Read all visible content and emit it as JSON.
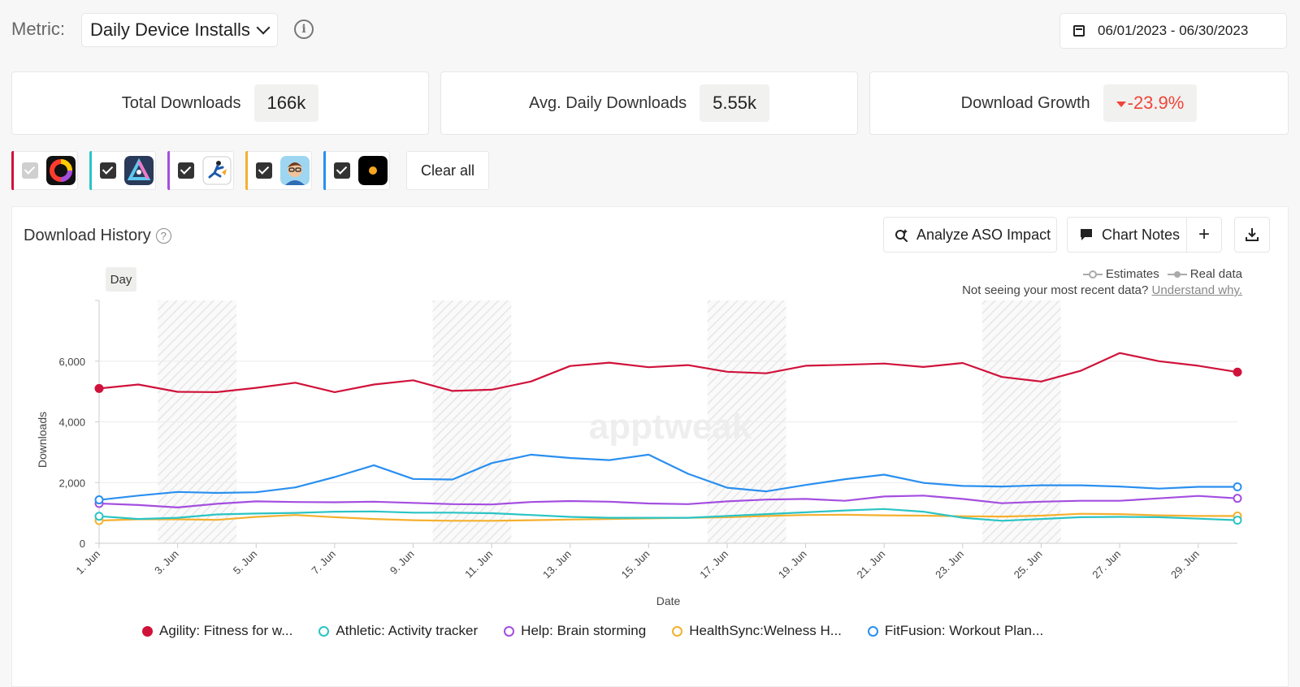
{
  "header": {
    "metric_label": "Metric:",
    "metric_value": "Daily Device Installs",
    "date_range": "06/01/2023 - 06/30/2023"
  },
  "kpis": [
    {
      "label": "Total Downloads",
      "value": "166k"
    },
    {
      "label": "Avg. Daily Downloads",
      "value": "5.55k"
    },
    {
      "label": "Download Growth",
      "value": "-23.9%"
    }
  ],
  "apps": [
    {
      "color": "#d0123a",
      "checked": false
    },
    {
      "color": "#2bc4c4",
      "checked": true
    },
    {
      "color": "#a44ee0",
      "checked": true
    },
    {
      "color": "#f5b02e",
      "checked": true
    },
    {
      "color": "#2a8ff0",
      "checked": true
    }
  ],
  "clear_all": "Clear all",
  "panel": {
    "title": "Download History",
    "analyze_btn": "Analyze ASO Impact",
    "notes_btn": "Chart Notes",
    "day_tab": "Day",
    "legend_estimates": "Estimates",
    "legend_real": "Real data",
    "note_text": "Not seeing your most recent data?",
    "note_link": "Understand why.",
    "watermark": "apptweak"
  },
  "chart_data": {
    "type": "line",
    "xlabel": "Date",
    "ylabel": "Downloads",
    "ylim": [
      0,
      8000
    ],
    "yticks": [
      0,
      2000,
      4000,
      6000
    ],
    "ytick_labels": [
      "0",
      "2,000",
      "4,000",
      "6,000"
    ],
    "x": [
      "1. Jun",
      "2. Jun",
      "3. Jun",
      "4. Jun",
      "5. Jun",
      "6. Jun",
      "7. Jun",
      "8. Jun",
      "9. Jun",
      "10. Jun",
      "11. Jun",
      "12. Jun",
      "13. Jun",
      "14. Jun",
      "15. Jun",
      "16. Jun",
      "17. Jun",
      "18. Jun",
      "19. Jun",
      "20. Jun",
      "21. Jun",
      "22. Jun",
      "23. Jun",
      "24. Jun",
      "25. Jun",
      "26. Jun",
      "27. Jun",
      "28. Jun",
      "29. Jun",
      "30. Jun"
    ],
    "xtick_labels": [
      "1. Jun",
      "3. Jun",
      "5. Jun",
      "7. Jun",
      "9. Jun",
      "11. Jun",
      "13. Jun",
      "15. Jun",
      "17. Jun",
      "19. Jun",
      "21. Jun",
      "23. Jun",
      "25. Jun",
      "27. Jun",
      "29. Jun"
    ],
    "weekend_bands": [
      [
        "3. Jun",
        "4. Jun"
      ],
      [
        "10. Jun",
        "11. Jun"
      ],
      [
        "17. Jun",
        "18. Jun"
      ],
      [
        "24. Jun",
        "25. Jun"
      ]
    ],
    "grid": true,
    "series": [
      {
        "name": "Agility: Fitness for w...",
        "color": "#d0123a",
        "filled_dot": true,
        "values": [
          5100,
          5230,
          4990,
          4980,
          5120,
          5290,
          4980,
          5230,
          5370,
          5020,
          5060,
          5330,
          5840,
          5950,
          5800,
          5870,
          5650,
          5600,
          5850,
          5880,
          5920,
          5810,
          5940,
          5480,
          5330,
          5680,
          6270,
          6000,
          5850,
          5640
        ]
      },
      {
        "name": "Athletic: Activity tracker",
        "color": "#2bc4c4",
        "filled_dot": false,
        "values": [
          890,
          800,
          840,
          950,
          980,
          1000,
          1040,
          1050,
          1010,
          1010,
          990,
          930,
          870,
          840,
          840,
          840,
          900,
          960,
          1020,
          1080,
          1130,
          1040,
          840,
          740,
          800,
          860,
          870,
          860,
          810,
          760
        ]
      },
      {
        "name": "Help: Brain storming",
        "color": "#a44ee0",
        "filled_dot": false,
        "values": [
          1310,
          1260,
          1180,
          1300,
          1380,
          1360,
          1350,
          1370,
          1330,
          1290,
          1280,
          1360,
          1390,
          1370,
          1310,
          1290,
          1380,
          1440,
          1460,
          1400,
          1540,
          1570,
          1460,
          1320,
          1370,
          1400,
          1400,
          1480,
          1560,
          1480
        ]
      },
      {
        "name": "HealthSync:Welness H...",
        "color": "#f5b02e",
        "filled_dot": false,
        "values": [
          750,
          790,
          790,
          770,
          870,
          930,
          860,
          800,
          760,
          740,
          740,
          760,
          780,
          800,
          820,
          840,
          860,
          900,
          930,
          940,
          920,
          910,
          890,
          880,
          910,
          970,
          960,
          920,
          900,
          900
        ]
      },
      {
        "name": "FitFusion: Workout Plan...",
        "color": "#2a8ff0",
        "filled_dot": false,
        "values": [
          1430,
          1570,
          1690,
          1660,
          1680,
          1840,
          2180,
          2570,
          2120,
          2100,
          2640,
          2920,
          2810,
          2740,
          2920,
          2290,
          1830,
          1710,
          1920,
          2110,
          2260,
          1990,
          1890,
          1870,
          1910,
          1910,
          1870,
          1800,
          1860,
          1860
        ]
      }
    ]
  }
}
